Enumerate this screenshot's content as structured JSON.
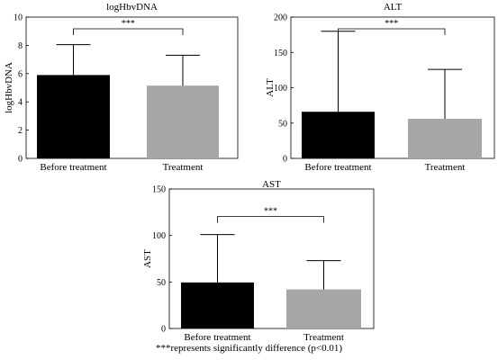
{
  "chart_data": [
    {
      "type": "bar",
      "title": "logHbvDNA",
      "ylabel": "logHbvDNA",
      "categories": [
        "Before treatment",
        "Treatment"
      ],
      "values": [
        5.9,
        5.15
      ],
      "error_upper": [
        8.05,
        7.3
      ],
      "ylim": [
        0,
        10
      ],
      "yticks": [
        "0",
        "2",
        "4",
        "6",
        "8",
        "10"
      ],
      "significance": "***",
      "colors": [
        "#000000",
        "#a6a6a9"
      ]
    },
    {
      "type": "bar",
      "title": "ALT",
      "ylabel": "ALT",
      "categories": [
        "Before treatment",
        "Treatment"
      ],
      "values": [
        66,
        56
      ],
      "error_upper": [
        180,
        126
      ],
      "ylim": [
        0,
        200
      ],
      "yticks": [
        "0",
        "50",
        "100",
        "150",
        "200"
      ],
      "significance": "***",
      "colors": [
        "#000000",
        "#a6a6a9"
      ]
    },
    {
      "type": "bar",
      "title": "AST",
      "ylabel": "AST",
      "categories": [
        "Before treatment",
        "Treatment"
      ],
      "values": [
        49.5,
        42
      ],
      "error_upper": [
        101,
        73
      ],
      "ylim": [
        0,
        150
      ],
      "yticks": [
        "0",
        "50",
        "100",
        "150"
      ],
      "significance": "***",
      "colors": [
        "#000000",
        "#a6a6a9"
      ]
    }
  ],
  "caption": "***represents significantly difference (p<0.01)"
}
